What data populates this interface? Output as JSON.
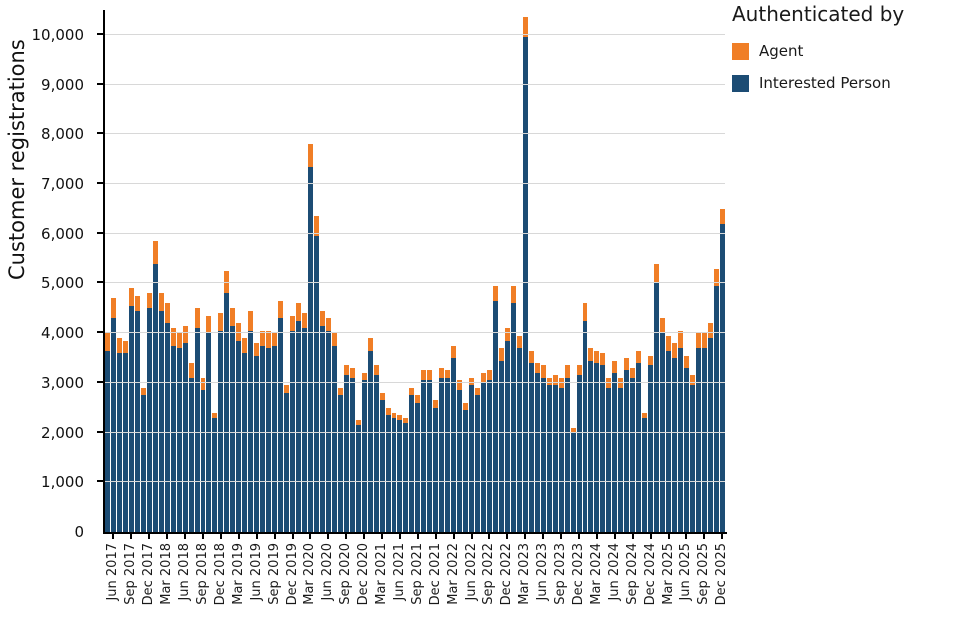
{
  "legend": {
    "title": "Authenticated by",
    "items": [
      {
        "label": "Agent",
        "color_key": "agent"
      },
      {
        "label": "Interested Person",
        "color_key": "interested_person"
      }
    ]
  },
  "chart_data": {
    "type": "bar",
    "stacked": true,
    "title": "",
    "xlabel": "",
    "ylabel": "Customer registrations",
    "ylim": [
      0,
      10500
    ],
    "grid": "horizontal",
    "legend_position": "top-right-outside",
    "colors": {
      "agent": "#f07e26",
      "interested_person": "#1c4c74"
    },
    "ytick_values": [
      0,
      1000,
      2000,
      3000,
      4000,
      5000,
      6000,
      7000,
      8000,
      9000,
      10000
    ],
    "ytick_labels": [
      "0",
      "1,000",
      "2,000",
      "3,000",
      "4,000",
      "5,000",
      "6,000",
      "7,000",
      "8,000",
      "9,000",
      "10,000"
    ],
    "labeled_months": [
      "Mar",
      "Jun",
      "Sep",
      "Dec"
    ],
    "months": [
      "May 2017",
      "Jun 2017",
      "Jul 2017",
      "Aug 2017",
      "Sep 2017",
      "Oct 2017",
      "Nov 2017",
      "Dec 2017",
      "Jan 2018",
      "Feb 2018",
      "Mar 2018",
      "Apr 2018",
      "May 2018",
      "Jun 2018",
      "Jul 2018",
      "Aug 2018",
      "Sep 2018",
      "Oct 2018",
      "Nov 2018",
      "Dec 2018",
      "Jan 2019",
      "Feb 2019",
      "Mar 2019",
      "Apr 2019",
      "May 2019",
      "Jun 2019",
      "Jul 2019",
      "Aug 2019",
      "Sep 2019",
      "Oct 2019",
      "Nov 2019",
      "Dec 2019",
      "Jan 2020",
      "Feb 2020",
      "Mar 2020",
      "Apr 2020",
      "May 2020",
      "Jun 2020",
      "Jul 2020",
      "Aug 2020",
      "Sep 2020",
      "Oct 2020",
      "Nov 2020",
      "Dec 2020",
      "Jan 2021",
      "Feb 2021",
      "Mar 2021",
      "Apr 2021",
      "May 2021",
      "Jun 2021",
      "Jul 2021",
      "Aug 2021",
      "Sep 2021",
      "Oct 2021",
      "Nov 2021",
      "Dec 2021",
      "Jan 2022",
      "Feb 2022",
      "Mar 2022",
      "Apr 2022",
      "May 2022",
      "Jun 2022",
      "Jul 2022",
      "Aug 2022",
      "Sep 2022",
      "Oct 2022",
      "Nov 2022",
      "Dec 2022",
      "Jan 2023",
      "Feb 2023",
      "Mar 2023",
      "Apr 2023",
      "May 2023",
      "Jun 2023",
      "Jul 2023",
      "Aug 2023",
      "Sep 2023",
      "Oct 2023",
      "Nov 2023",
      "Dec 2023",
      "Jan 2024",
      "Feb 2024",
      "Mar 2024",
      "Apr 2024",
      "May 2024",
      "Jun 2024",
      "Jul 2024",
      "Aug 2024",
      "Sep 2024",
      "Oct 2024",
      "Nov 2024",
      "Dec 2024",
      "Jan 2025",
      "Feb 2025",
      "Mar 2025",
      "Apr 2025",
      "May 2025",
      "Jun 2025",
      "Jul 2025",
      "Aug 2025",
      "Sep 2025",
      "Oct 2025",
      "Nov 2025",
      "Dec 2025"
    ],
    "series": [
      {
        "name": "Agent",
        "values": [
          350,
          400,
          300,
          250,
          350,
          300,
          150,
          300,
          450,
          350,
          400,
          350,
          300,
          350,
          300,
          400,
          250,
          350,
          100,
          350,
          450,
          350,
          350,
          300,
          400,
          250,
          300,
          350,
          250,
          350,
          150,
          300,
          350,
          300,
          450,
          400,
          300,
          250,
          250,
          150,
          200,
          200,
          100,
          150,
          250,
          200,
          150,
          150,
          100,
          100,
          100,
          150,
          150,
          200,
          200,
          150,
          200,
          150,
          250,
          200,
          150,
          150,
          150,
          200,
          200,
          300,
          250,
          250,
          350,
          250,
          400,
          250,
          200,
          250,
          150,
          200,
          200,
          250,
          100,
          200,
          350,
          250,
          250,
          250,
          200,
          250,
          200,
          250,
          200,
          250,
          100,
          200,
          400,
          300,
          300,
          300,
          350,
          250,
          200,
          300,
          300,
          300,
          350,
          300
        ]
      },
      {
        "name": "Interested Person",
        "values": [
          3650,
          4300,
          3600,
          3600,
          4550,
          4450,
          2750,
          4500,
          5400,
          4450,
          4200,
          3750,
          3700,
          3800,
          3100,
          4100,
          2850,
          4000,
          2300,
          4050,
          4800,
          4150,
          3850,
          3600,
          4050,
          3550,
          3750,
          3700,
          3750,
          4300,
          2800,
          4050,
          4250,
          4100,
          7350,
          5950,
          4150,
          4050,
          3750,
          2750,
          3150,
          3100,
          2150,
          3050,
          3650,
          3150,
          2650,
          2350,
          2300,
          2250,
          2200,
          2750,
          2600,
          3050,
          3050,
          2500,
          3100,
          3100,
          3500,
          2850,
          2450,
          2950,
          2750,
          3000,
          3050,
          4650,
          3450,
          3850,
          4600,
          3700,
          9950,
          3400,
          3200,
          3100,
          2950,
          2950,
          2900,
          3100,
          2000,
          3150,
          4250,
          3450,
          3400,
          3350,
          2900,
          3200,
          2900,
          3250,
          3100,
          3400,
          2300,
          3350,
          5000,
          4000,
          3650,
          3500,
          3700,
          3300,
          2950,
          3700,
          3700,
          3900,
          4950,
          6200
        ]
      }
    ]
  }
}
